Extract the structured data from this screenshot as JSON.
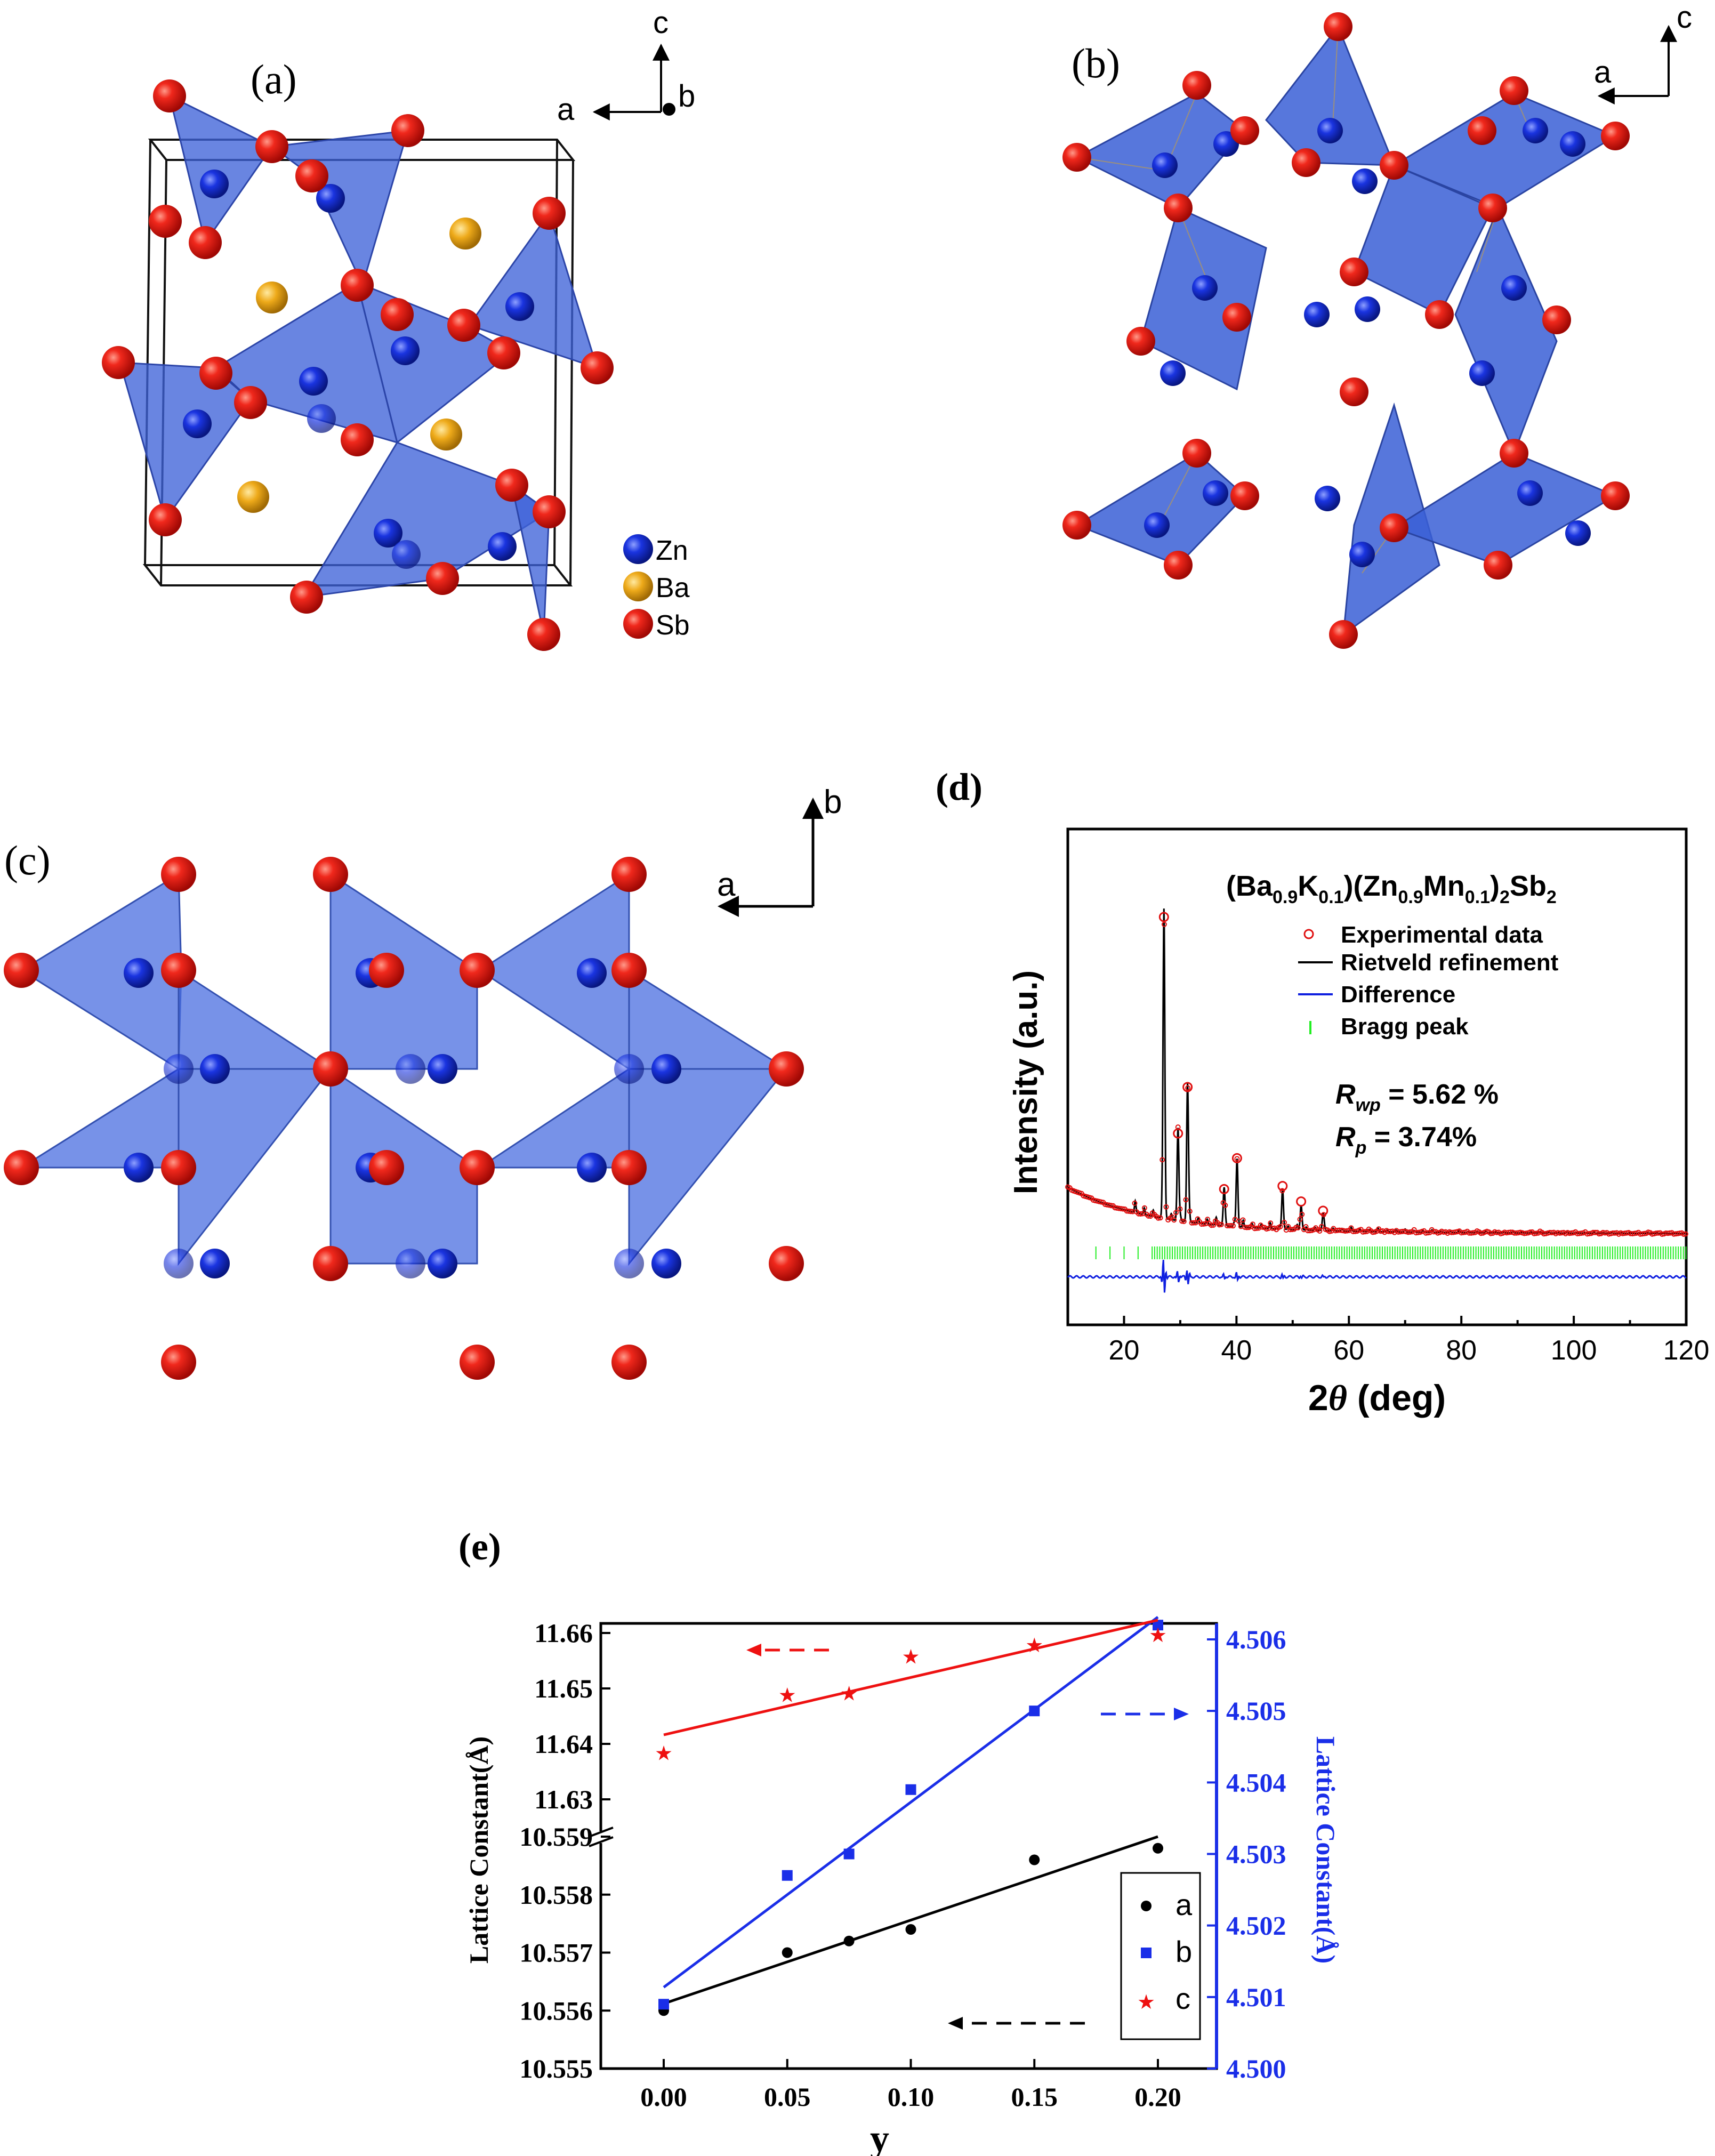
{
  "panels": {
    "a": {
      "label": "(a)",
      "axes": {
        "c": "c",
        "a": "a",
        "b": "b"
      },
      "legend": [
        {
          "label": "Zn",
          "color": "#1530d8"
        },
        {
          "label": "Ba",
          "color": "#e6a417"
        },
        {
          "label": "Sb",
          "color": "#e3110f"
        }
      ]
    },
    "b": {
      "label": "(b)",
      "axes": {
        "c": "c",
        "a": "a"
      }
    },
    "c": {
      "label": "(c)",
      "axes": {
        "b": "b",
        "a": "a"
      }
    },
    "d": {
      "label": "(d)",
      "formula": {
        "p1": "(Ba",
        "s1": "0.9",
        "p2": "K",
        "s2": "0.1",
        "p3": ")(Zn",
        "s3": "0.9",
        "p4": "Mn",
        "s4": "0.1",
        "p5": ")",
        "s5": "2",
        "p6": "Sb",
        "s6": "2"
      },
      "legend": [
        {
          "label": "Experimental data",
          "color": "#e01010"
        },
        {
          "label": "Rietveld refinement",
          "color": "#000000"
        },
        {
          "label": "Difference",
          "color": "#1020e0"
        },
        {
          "label": "Bragg peak",
          "color": "#22ee22"
        }
      ],
      "rwp": {
        "sym": "R",
        "sub": "wp",
        "value": " = 5.62 %"
      },
      "rp": {
        "sym": "R",
        "sub": "p",
        "value": " = 3.74%"
      },
      "ylabel": "Intensity (a.u.)",
      "xlabel_num": "2",
      "xlabel_theta": "θ",
      "xlabel_unit": " (deg)",
      "xticks": [
        "20",
        "40",
        "60",
        "80",
        "100",
        "120"
      ]
    },
    "e": {
      "label": "(e)"
    }
  },
  "chart_data": [
    {
      "type": "line",
      "title": "",
      "x_range": [
        10,
        120
      ],
      "ylabel": "Intensity (a.u.)",
      "xlabel": "2θ (deg)",
      "legend_position": "top-right",
      "series": [
        {
          "name": "Experimental data",
          "peaks": [
            [
              27.1,
              100
            ],
            [
              29.6,
              30
            ],
            [
              31.3,
              45
            ],
            [
              37.8,
              12
            ],
            [
              40.1,
              22
            ],
            [
              48.2,
              13
            ],
            [
              51.5,
              8
            ],
            [
              55.4,
              5
            ]
          ]
        },
        {
          "name": "Rietveld refinement"
        },
        {
          "name": "Difference"
        },
        {
          "name": "Bragg peak"
        }
      ]
    },
    {
      "type": "scatter",
      "title": "",
      "xlabel": "y",
      "ylabel_left": "Lattice Constant(Å)",
      "ylabel_right": "Lattice Constant(Å)",
      "xticks": [
        "0.00",
        "0.05",
        "0.10",
        "0.15",
        "0.20"
      ],
      "yticks_left_upper": [
        "11.66",
        "11.65",
        "11.64",
        "11.63"
      ],
      "yticks_left_lower": [
        "10.559",
        "10.558",
        "10.557",
        "10.556",
        "10.555"
      ],
      "yticks_right": [
        "4.506",
        "4.505",
        "4.504",
        "4.503",
        "4.502",
        "4.501",
        "4.500"
      ],
      "legend_position": "bottom-right",
      "series": [
        {
          "name": "a",
          "axis": "left-lower",
          "color": "#000000",
          "x": [
            0.0,
            0.05,
            0.075,
            0.1,
            0.15,
            0.2
          ],
          "y": [
            10.556,
            10.557,
            10.5572,
            10.5574,
            10.5586,
            10.5588
          ]
        },
        {
          "name": "b",
          "axis": "right",
          "color": "#1a2ee8",
          "x": [
            0.0,
            0.05,
            0.075,
            0.1,
            0.15,
            0.2
          ],
          "y": [
            4.5009,
            4.5027,
            4.503,
            4.5039,
            4.505,
            4.5062
          ]
        },
        {
          "name": "c",
          "axis": "left-upper",
          "color": "#ee1111",
          "x": [
            0.0,
            0.05,
            0.075,
            0.1,
            0.15,
            0.2
          ],
          "y": [
            11.6383,
            11.6488,
            11.6491,
            11.6557,
            11.6578,
            11.6596
          ]
        }
      ]
    }
  ]
}
